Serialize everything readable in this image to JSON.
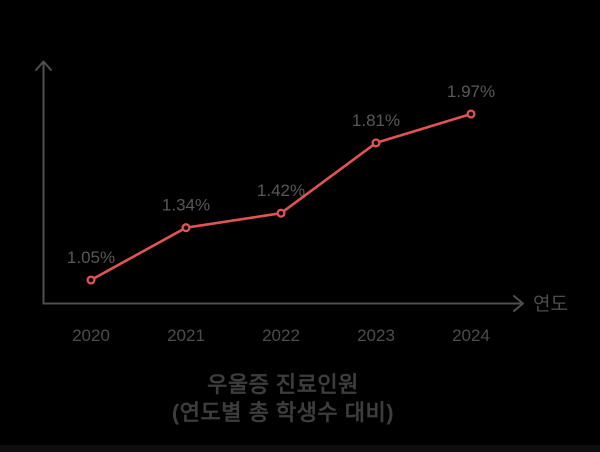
{
  "colors": {
    "background": "#000000",
    "line": "#e05454",
    "marker_fill": "#0a0a0a",
    "axis": "#4f4f4f",
    "point_label": "#585858",
    "tick_label": "#4c4c4c",
    "axis_label": "#4c4c4c",
    "title": "#3d3d3d"
  },
  "title": {
    "line1": "우울증 진료인원",
    "line2": "(연도별 총 학생수 대비)"
  },
  "chart_data": {
    "type": "line",
    "categories": [
      "2020",
      "2021",
      "2022",
      "2023",
      "2024"
    ],
    "values": [
      1.05,
      1.34,
      1.42,
      1.81,
      1.97
    ],
    "point_labels": [
      "1.05%",
      "1.34%",
      "1.42%",
      "1.81%",
      "1.97%"
    ],
    "unit": "%",
    "xlabel": "연도",
    "ylabel": "",
    "title": "우울증 진료인원",
    "subtitle": "(연도별 총 학생수 대비)",
    "y_axis_ticks": [],
    "grid": false,
    "legend": false
  }
}
